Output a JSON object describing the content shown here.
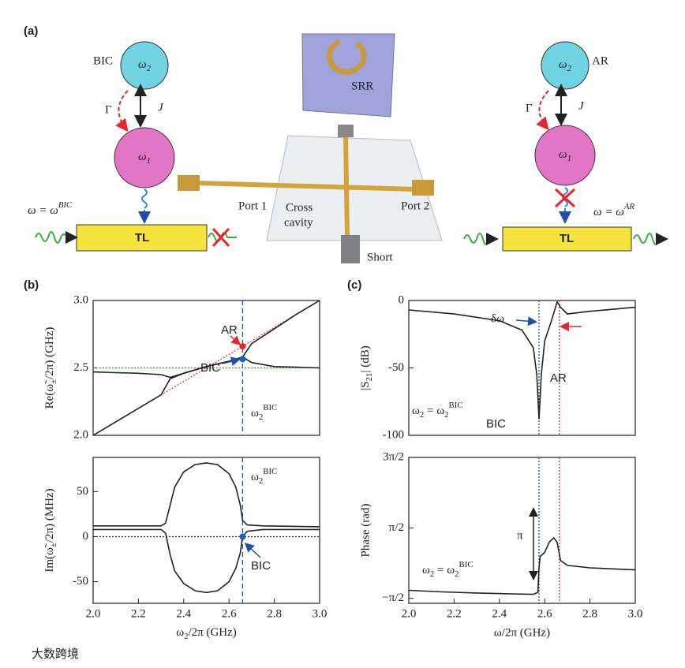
{
  "figure": {
    "panel_labels": [
      "(a)",
      "(b)",
      "(c)"
    ],
    "watermark": "大数跨境",
    "schematic": {
      "left": {
        "mode": "BIC",
        "top_node": [
          {
            "t": "ω"
          },
          {
            "t": "2",
            "sub": true
          }
        ],
        "bottom_node": [
          {
            "t": "ω"
          },
          {
            "t": "1",
            "sub": true
          }
        ],
        "gamma": "Γ",
        "coupling": "J",
        "condition": [
          {
            "t": "ω = ω"
          },
          {
            "t": "BIC",
            "sup": true
          }
        ],
        "line": "TL"
      },
      "right": {
        "mode": "AR",
        "top_node": [
          {
            "t": "ω"
          },
          {
            "t": "2",
            "sub": true
          }
        ],
        "bottom_node": [
          {
            "t": "ω"
          },
          {
            "t": "1",
            "sub": true
          }
        ],
        "gamma": "Γ",
        "coupling": "J",
        "condition": [
          {
            "t": "ω = ω"
          },
          {
            "t": "AR",
            "sup": true
          }
        ],
        "line": "TL"
      },
      "device": {
        "resonator": "SRR",
        "port1": "Port 1",
        "port2": "Port 2",
        "cavity": [
          "Cross",
          "cavity"
        ],
        "short": "Short"
      }
    }
  },
  "chart_data": [
    {
      "type": "line",
      "ylabel": [
        {
          "t": "Re("
        },
        {
          "t": "ω̃"
        },
        {
          "t": "±",
          "sub": true
        },
        {
          "t": "/2π) (GHz)"
        }
      ],
      "xlim": [
        2.0,
        3.0
      ],
      "ylim": [
        2.0,
        3.0
      ],
      "yticks": [
        {
          "value": 2.0,
          "label": "2.0"
        },
        2.5,
        {
          "value": 3.0,
          "label": "3.0"
        }
      ],
      "series": [
        {
          "color": "#e8262a",
          "dash": "2,2",
          "x": [
            2.0,
            3.0
          ],
          "values": [
            2.0,
            3.0
          ]
        },
        {
          "color": "#3a9a3a",
          "dash": "2,2",
          "x": [
            2.0,
            3.0
          ],
          "values": [
            2.5,
            2.5
          ]
        },
        {
          "color": "#222222",
          "x": [
            2.0,
            2.1,
            2.2,
            2.3,
            2.34,
            2.4,
            2.5,
            2.6,
            2.66,
            2.7,
            2.8,
            2.9,
            3.0
          ],
          "values": [
            2.47,
            2.465,
            2.46,
            2.45,
            2.43,
            2.46,
            2.51,
            2.55,
            2.58,
            2.68,
            2.79,
            2.9,
            3.0
          ]
        },
        {
          "color": "#222222",
          "x": [
            2.0,
            2.1,
            2.2,
            2.3,
            2.34,
            2.4,
            2.5,
            2.6,
            2.66,
            2.7,
            2.8,
            2.9,
            3.0
          ],
          "values": [
            2.0,
            2.1,
            2.2,
            2.3,
            2.42,
            2.46,
            2.51,
            2.55,
            2.58,
            2.54,
            2.51,
            2.505,
            2.5
          ]
        }
      ],
      "vlines": [
        {
          "x": 2.66,
          "color": "#1f4fa8",
          "dash": "6,4"
        }
      ],
      "points": [
        {
          "x": 2.66,
          "y": 2.66,
          "color": "#e8262a"
        },
        {
          "x": 2.66,
          "y": 2.565,
          "color": "#1f5fc0"
        }
      ],
      "annotations": [
        {
          "text": "AR",
          "color": "#e8262a"
        },
        {
          "text": "BIC",
          "color": "#1f4fa8"
        },
        {
          "text": [
            {
              "t": "ω"
            },
            {
              "t": "2",
              "sub": true
            },
            {
              "t": "BIC",
              "sup": true
            }
          ],
          "color": "#222222"
        }
      ]
    },
    {
      "type": "line",
      "ylabel": [
        {
          "t": "Im("
        },
        {
          "t": "ω̃"
        },
        {
          "t": "±",
          "sub": true
        },
        {
          "t": "/2π) (MHz)"
        }
      ],
      "xlabel": [
        {
          "t": "ω"
        },
        {
          "t": "2",
          "sub": true
        },
        {
          "t": "/2π (GHz)"
        }
      ],
      "xlim": [
        2.0,
        3.0
      ],
      "ylim": [
        -74,
        88
      ],
      "xticks": [
        {
          "value": 2.0,
          "label": "2.0"
        },
        2.2,
        2.4,
        2.6,
        2.8,
        {
          "value": 3.0,
          "label": "3.0"
        }
      ],
      "yticks": [
        -50,
        0,
        50
      ],
      "series": [
        {
          "color": "#222222",
          "dash": "2,2",
          "x": [
            2.0,
            3.0
          ],
          "values": [
            0,
            0
          ]
        },
        {
          "color": "#222222",
          "x": [
            2.0,
            2.2,
            2.3,
            2.32,
            2.34,
            2.36,
            2.4,
            2.45,
            2.5,
            2.55,
            2.6,
            2.63,
            2.65,
            2.66,
            2.68,
            2.75,
            3.0
          ],
          "values": [
            12,
            12,
            12,
            15,
            35,
            55,
            72,
            80,
            82,
            80,
            70,
            55,
            35,
            18,
            13,
            12,
            11
          ]
        },
        {
          "color": "#222222",
          "x": [
            2.0,
            2.2,
            2.3,
            2.32,
            2.34,
            2.36,
            2.4,
            2.45,
            2.5,
            2.55,
            2.6,
            2.63,
            2.65,
            2.66,
            2.68,
            2.75,
            3.0
          ],
          "values": [
            8,
            8,
            8,
            4,
            -20,
            -38,
            -52,
            -60,
            -62,
            -60,
            -50,
            -35,
            -18,
            0,
            6,
            8,
            8
          ]
        }
      ],
      "vlines": [
        {
          "x": 2.66,
          "color": "#1f4fa8",
          "dash": "6,4"
        }
      ],
      "points": [
        {
          "x": 2.66,
          "y": 0,
          "color": "#1f5fc0"
        }
      ],
      "annotations": [
        {
          "text": [
            {
              "t": "ω"
            },
            {
              "t": "2",
              "sub": true
            },
            {
              "t": "BIC",
              "sup": true
            }
          ],
          "color": "#222222"
        },
        {
          "text": "BIC",
          "color": "#1f4fa8"
        }
      ]
    },
    {
      "type": "line",
      "ylabel": [
        {
          "t": "|S"
        },
        {
          "t": "21",
          "sub": true
        },
        {
          "t": "| (dB)"
        }
      ],
      "xlim": [
        2.0,
        3.0
      ],
      "ylim": [
        -100,
        0
      ],
      "yticks": [
        -100,
        -50,
        0
      ],
      "series": [
        {
          "color": "#222222",
          "x": [
            2.0,
            2.2,
            2.4,
            2.5,
            2.55,
            2.565,
            2.575,
            2.585,
            2.6,
            2.63,
            2.655,
            2.67,
            2.7,
            2.8,
            3.0
          ],
          "values": [
            -7,
            -10,
            -15,
            -22,
            -35,
            -55,
            -88,
            -55,
            -30,
            -15,
            -1,
            -5,
            -10,
            -8,
            -5
          ]
        }
      ],
      "vlines": [
        {
          "x": 2.575,
          "color": "#1f4fa8",
          "dash": "2,2"
        },
        {
          "x": 2.665,
          "color": "#e8262a",
          "dash": "2,2"
        }
      ],
      "points": [],
      "annotations": [
        {
          "text": "δω",
          "color": "#222222"
        },
        {
          "text": "AR",
          "color": "#e8262a"
        },
        {
          "text": "BIC",
          "color": "#1f4fa8"
        },
        {
          "text": [
            {
              "t": "ω"
            },
            {
              "t": "2",
              "sub": true
            },
            {
              "t": " = ω"
            },
            {
              "t": "2",
              "sub": true
            },
            {
              "t": "BIC",
              "sup": true
            }
          ],
          "color": "#222222"
        }
      ]
    },
    {
      "type": "line",
      "ylabel": "Phase (rad)",
      "xlabel": "ω/2π (GHz)",
      "xlim": [
        2.0,
        3.0
      ],
      "ylim": [
        -1.79,
        4.712
      ],
      "xticks": [
        {
          "value": 2.0,
          "label": "2.0"
        },
        2.2,
        2.4,
        2.6,
        2.8,
        {
          "value": 3.0,
          "label": "3.0"
        }
      ],
      "yticks": [
        {
          "value": -1.5708,
          "label": "−π/2"
        },
        {
          "value": 1.5708,
          "label": "π/2"
        },
        {
          "value": 4.7124,
          "label": "3π/2"
        }
      ],
      "series": [
        {
          "color": "#222222",
          "x": [
            2.0,
            2.15,
            2.3,
            2.45,
            2.55,
            2.57,
            2.575,
            2.58,
            2.6,
            2.62,
            2.64,
            2.655,
            2.67,
            2.7,
            2.8,
            3.0
          ],
          "values": [
            -1.21,
            -1.28,
            -1.33,
            -1.37,
            -1.39,
            -1.3,
            -0.2,
            0.3,
            0.48,
            0.93,
            1.13,
            0.93,
            0.12,
            -0.1,
            -0.21,
            -0.3
          ]
        }
      ],
      "vlines": [
        {
          "x": 2.575,
          "color": "#1f4fa8",
          "dash": "2,2"
        },
        {
          "x": 2.665,
          "color": "#e8262a",
          "dash": "2,2"
        }
      ],
      "points": [],
      "annotations": [
        {
          "text": "π",
          "color": "#222222"
        },
        {
          "text": [
            {
              "t": "ω"
            },
            {
              "t": "2",
              "sub": true
            },
            {
              "t": " = ω"
            },
            {
              "t": "2",
              "sub": true
            },
            {
              "t": "BIC",
              "sup": true
            }
          ],
          "color": "#222222"
        }
      ]
    }
  ]
}
